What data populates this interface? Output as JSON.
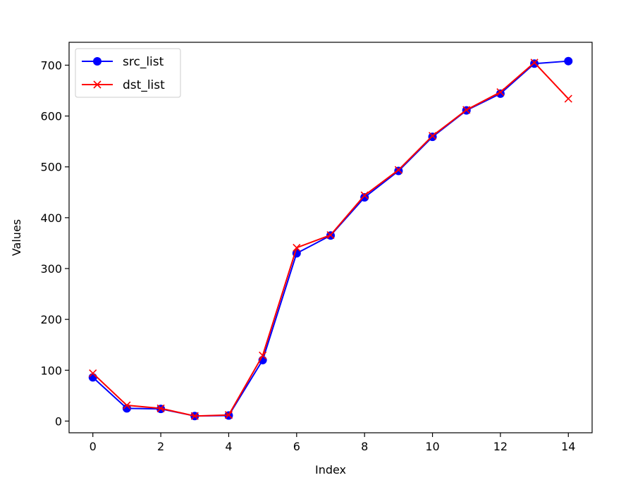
{
  "chart_data": {
    "type": "line",
    "title": "",
    "xlabel": "Index",
    "ylabel": "Values",
    "x": [
      0,
      1,
      2,
      3,
      4,
      5,
      6,
      7,
      8,
      9,
      10,
      11,
      12,
      13,
      14
    ],
    "xlim": [
      -0.7,
      14.7
    ],
    "ylim": [
      -23,
      745
    ],
    "xticks": [
      "0",
      "2",
      "4",
      "6",
      "8",
      "10",
      "12",
      "14"
    ],
    "yticks": [
      "0",
      "100",
      "200",
      "300",
      "400",
      "500",
      "600",
      "700"
    ],
    "grid": false,
    "legend_position": "top-left",
    "series": [
      {
        "name": "src_list",
        "color": "#0000ff",
        "marker": "circle",
        "values": [
          86,
          25,
          24,
          10,
          11,
          120,
          330,
          365,
          440,
          492,
          559,
          611,
          644,
          703,
          708
        ]
      },
      {
        "name": "dst_list",
        "color": "#ff0000",
        "marker": "x",
        "values": [
          94,
          31,
          25,
          10,
          12,
          129,
          341,
          366,
          444,
          494,
          561,
          612,
          647,
          705,
          634
        ]
      }
    ]
  }
}
